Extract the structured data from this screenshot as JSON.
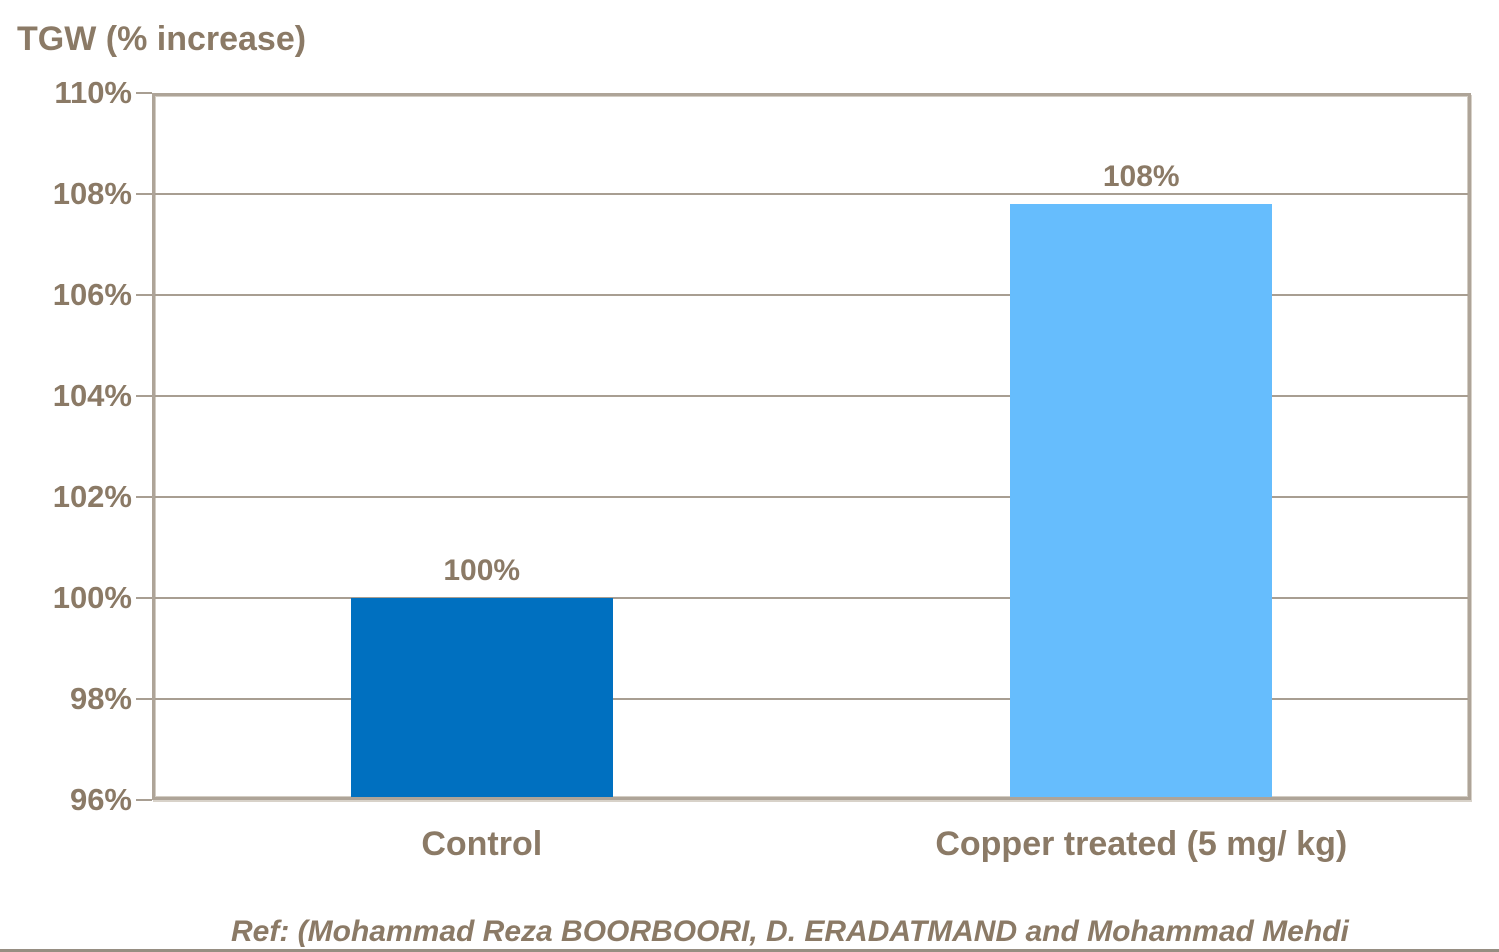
{
  "title": "TGW (% increase)",
  "footer": {
    "ref_text": "Ref: (Mohammad Reza BOORBOORI, D. ERADATMAND and Mohammad Mehdi"
  },
  "colors": {
    "text": "#8B7A66",
    "gridline": "#A89E92",
    "plot_border": "#AEA498",
    "control_bar": "#0070C0",
    "copper_bar": "#66BDFD"
  },
  "chart_data": {
    "type": "bar",
    "title": "TGW (% increase)",
    "categories": [
      "Control",
      "Copper treated (5 mg/ kg)"
    ],
    "values": [
      100,
      107.8
    ],
    "data_labels": [
      "100%",
      "108%"
    ],
    "series": [
      {
        "name": "TGW (% increase)",
        "values": [
          100,
          107.8
        ]
      }
    ],
    "bar_colors": [
      "#0070C0",
      "#66BDFD"
    ],
    "xlabel": "",
    "ylabel": "TGW (% increase)",
    "ylim": [
      96,
      110
    ],
    "ytick_step": 2,
    "ytick_labels": [
      "96%",
      "98%",
      "100%",
      "102%",
      "104%",
      "106%",
      "108%",
      "110%"
    ],
    "grid": true,
    "legend": "none"
  }
}
